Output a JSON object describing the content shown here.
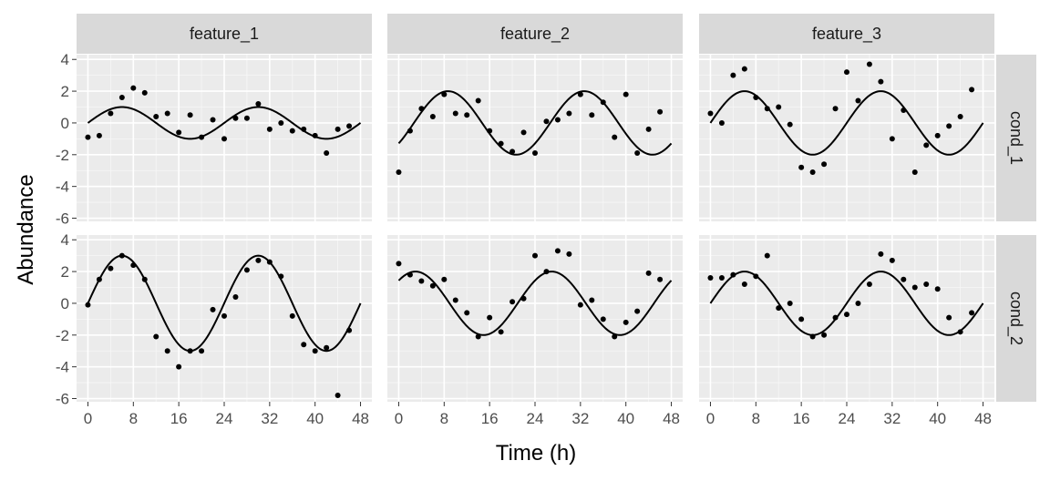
{
  "chart_data": {
    "type": "scatter",
    "xlabel": "Time (h)",
    "ylabel": "Abundance",
    "xlim": [
      -2,
      50
    ],
    "ylim": [
      -6.2,
      4.3
    ],
    "xticks": [
      0,
      8,
      16,
      24,
      32,
      40,
      48
    ],
    "yticks": [
      -6,
      -4,
      -2,
      0,
      2,
      4
    ],
    "grid": true,
    "facet_columns": [
      "feature_1",
      "feature_2",
      "feature_3"
    ],
    "facet_rows": [
      "cond_1",
      "cond_2"
    ],
    "x": [
      0,
      2,
      4,
      6,
      8,
      10,
      12,
      14,
      16,
      18,
      20,
      22,
      24,
      26,
      28,
      30,
      32,
      34,
      36,
      38,
      40,
      42,
      44,
      46
    ],
    "panels": [
      {
        "column": "feature_1",
        "row": "cond_1",
        "fit": {
          "amplitude": 1,
          "period": 24,
          "phase": 0
        },
        "values": [
          -0.9,
          -0.8,
          0.6,
          1.6,
          2.2,
          1.9,
          0.4,
          0.6,
          -0.6,
          0.5,
          -0.9,
          0.2,
          -1.0,
          0.3,
          0.3,
          1.2,
          -0.4,
          0.0,
          -0.5,
          -0.4,
          -0.8,
          -1.9,
          -0.4,
          -0.2
        ]
      },
      {
        "column": "feature_2",
        "row": "cond_1",
        "fit": {
          "amplitude": 2,
          "period": 24,
          "phase": -0.7
        },
        "values": [
          -3.1,
          -0.5,
          0.9,
          0.4,
          1.8,
          0.6,
          0.5,
          1.4,
          -0.5,
          -1.3,
          -1.8,
          -0.6,
          -1.9,
          0.1,
          0.2,
          0.6,
          1.8,
          0.5,
          1.3,
          -0.9,
          1.8,
          -1.9,
          -0.4,
          0.7
        ]
      },
      {
        "column": "feature_3",
        "row": "cond_1",
        "fit": {
          "amplitude": 2,
          "period": 24,
          "phase": 0
        },
        "values": [
          0.6,
          0.0,
          3.0,
          3.4,
          1.6,
          0.9,
          1.0,
          -0.1,
          -2.8,
          -3.1,
          -2.6,
          0.9,
          3.2,
          1.4,
          3.7,
          2.6,
          -1.0,
          0.8,
          -3.1,
          -1.4,
          -0.8,
          -0.2,
          0.4,
          2.1
        ]
      },
      {
        "column": "feature_1",
        "row": "cond_2",
        "fit": {
          "amplitude": 3,
          "period": 24,
          "phase": 0
        },
        "values": [
          -0.1,
          1.5,
          2.2,
          3.0,
          2.4,
          1.5,
          -2.1,
          -3.0,
          -4.0,
          -3.0,
          -3.0,
          -0.4,
          -0.8,
          0.4,
          2.1,
          2.7,
          2.6,
          1.7,
          -0.8,
          -2.6,
          -3.0,
          -2.8,
          -5.8,
          -1.7
        ]
      },
      {
        "column": "feature_2",
        "row": "cond_2",
        "fit": {
          "amplitude": 2,
          "period": 24,
          "phase": 0.8
        },
        "values": [
          2.5,
          1.8,
          1.4,
          1.1,
          1.5,
          0.2,
          -0.6,
          -2.1,
          -0.9,
          -1.8,
          0.1,
          0.3,
          3.0,
          2.0,
          3.3,
          3.1,
          -0.1,
          0.2,
          -1.0,
          -2.1,
          -1.2,
          -0.5,
          1.9,
          1.5
        ]
      },
      {
        "column": "feature_3",
        "row": "cond_2",
        "fit": {
          "amplitude": 2,
          "period": 24,
          "phase": 0
        },
        "values": [
          1.6,
          1.6,
          1.8,
          1.2,
          1.7,
          3.0,
          -0.3,
          0.0,
          -1.0,
          -2.1,
          -2.0,
          -0.9,
          -0.7,
          0.0,
          1.2,
          3.1,
          2.7,
          1.5,
          1.0,
          1.2,
          0.9,
          -0.9,
          -1.8,
          -0.6
        ]
      }
    ]
  }
}
